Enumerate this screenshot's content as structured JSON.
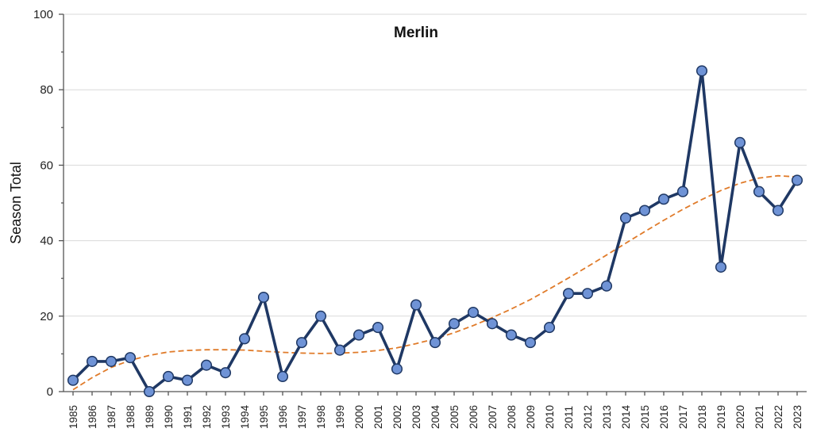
{
  "chart_data": {
    "type": "line",
    "title": "Merlin",
    "ylabel": "Season Total",
    "xlabel": "",
    "ylim": [
      0,
      100
    ],
    "yticks": [
      0,
      20,
      40,
      60,
      80,
      100
    ],
    "grid": "horizontal",
    "categories": [
      "1985",
      "1986",
      "1987",
      "1988",
      "1989",
      "1990",
      "1991",
      "1992",
      "1993",
      "1994",
      "1995",
      "1996",
      "1997",
      "1998",
      "1999",
      "2000",
      "2001",
      "2002",
      "2003",
      "2004",
      "2005",
      "2006",
      "2007",
      "2008",
      "2009",
      "2010",
      "2011",
      "2012",
      "2013",
      "2014",
      "2015",
      "2016",
      "2017",
      "2018",
      "2019",
      "2020",
      "2021",
      "2022",
      "2023"
    ],
    "series": [
      {
        "values": [
          3,
          8,
          8,
          9,
          0,
          4,
          3,
          7,
          5,
          14,
          25,
          4,
          13,
          20,
          11,
          15,
          17,
          6,
          23,
          13,
          18,
          21,
          18,
          15,
          13,
          17,
          26,
          26,
          28,
          46,
          48,
          51,
          53,
          85,
          33,
          66,
          53,
          48,
          56
        ],
        "color": "#1f3864",
        "marker_color": "#6f93d6",
        "style": "solid-with-markers"
      },
      {
        "values": [
          0.5,
          3.7,
          6.4,
          8.3,
          9.6,
          10.5,
          10.9,
          11.1,
          11.1,
          11.0,
          10.7,
          10.4,
          10.2,
          10.1,
          10.2,
          10.4,
          10.9,
          11.6,
          12.7,
          14.0,
          15.6,
          17.5,
          19.6,
          21.9,
          24.4,
          27.2,
          30.1,
          33.1,
          36.2,
          39.3,
          42.4,
          45.4,
          48.3,
          50.9,
          53.3,
          55.2,
          56.6,
          57.2,
          56.9
        ],
        "color": "#e07b2a",
        "style": "dashed-trend"
      }
    ]
  }
}
